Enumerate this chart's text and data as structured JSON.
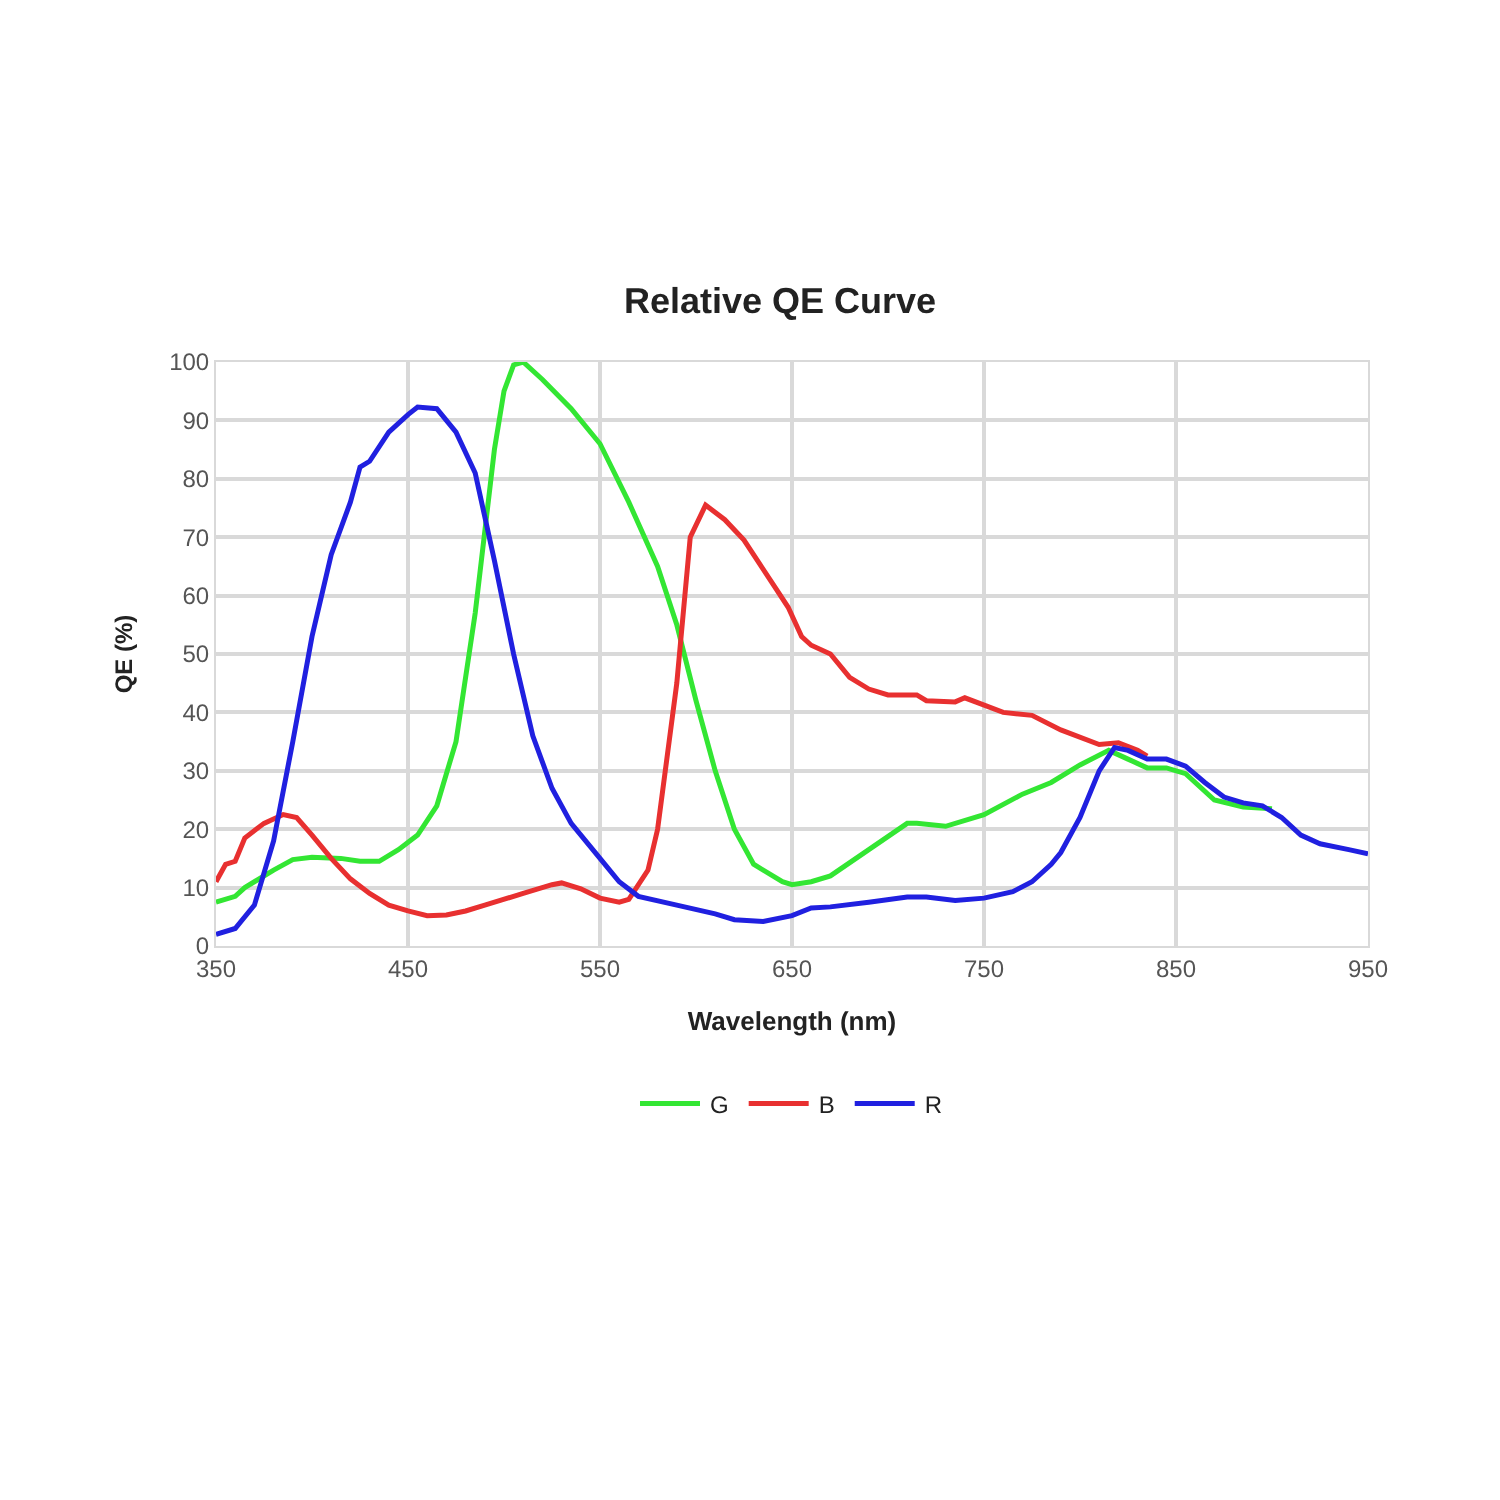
{
  "chart_data": {
    "type": "line",
    "title": "Relative QE Curve",
    "xlabel": "Wavelength (nm)",
    "ylabel": "QE (%)",
    "xlim": [
      350,
      950
    ],
    "xticks": [
      350,
      450,
      550,
      650,
      750,
      850,
      950
    ],
    "ylim": [
      0,
      100
    ],
    "yticks": [
      0,
      10,
      20,
      30,
      40,
      50,
      60,
      70,
      80,
      90,
      100
    ],
    "grid": true,
    "legend": "bottom",
    "marker": "none",
    "line_style": "solid",
    "series": [
      {
        "name": "G",
        "color": "#33e633",
        "x": [
          350,
          360,
          365,
          380,
          390,
          400,
          415,
          425,
          435,
          445,
          455,
          465,
          475,
          485,
          495,
          500,
          505,
          510,
          520,
          535,
          550,
          565,
          580,
          590,
          600,
          610,
          620,
          630,
          645,
          650,
          660,
          670,
          690,
          710,
          715,
          730,
          750,
          770,
          785,
          800,
          815,
          825,
          835,
          845,
          855,
          870,
          885,
          900
        ],
        "values": [
          7.5,
          8.5,
          10,
          13,
          14.8,
          15.2,
          15,
          14.5,
          14.5,
          16.5,
          19,
          24,
          35,
          57,
          85,
          95,
          99.5,
          100,
          97,
          92,
          86,
          76,
          65,
          55,
          42,
          30,
          20,
          14,
          11,
          10.5,
          11,
          12,
          16.5,
          21,
          21,
          20.5,
          22.5,
          26,
          28,
          31,
          33.5,
          32,
          30.5,
          30.5,
          29.5,
          25,
          23.8,
          23.5
        ]
      },
      {
        "name": "B",
        "color": "#e83030",
        "x": [
          350,
          355,
          360,
          365,
          375,
          385,
          392,
          400,
          410,
          420,
          430,
          440,
          450,
          460,
          470,
          480,
          490,
          510,
          525,
          530,
          540,
          550,
          560,
          565,
          575,
          580,
          590,
          597,
          605,
          615,
          625,
          640,
          648,
          655,
          660,
          670,
          680,
          690,
          700,
          715,
          720,
          735,
          740,
          760,
          775,
          790,
          810,
          820,
          830,
          835
        ],
        "values": [
          11,
          14,
          14.5,
          18.5,
          21,
          22.5,
          22,
          19,
          15,
          11.5,
          9,
          7,
          6,
          5.2,
          5.3,
          6,
          7,
          9,
          10.5,
          10.8,
          9.8,
          8.2,
          7.5,
          8,
          13,
          20,
          45,
          70,
          75.5,
          73,
          69.5,
          62,
          58,
          53,
          51.5,
          50,
          46,
          44,
          43,
          43,
          42,
          41.8,
          42.5,
          40,
          39.5,
          37,
          34.5,
          34.8,
          33.5,
          32.5
        ]
      },
      {
        "name": "R",
        "color": "#2020e0",
        "x": [
          350,
          360,
          370,
          380,
          390,
          400,
          410,
          420,
          425,
          430,
          440,
          450,
          455,
          465,
          475,
          485,
          495,
          505,
          515,
          525,
          535,
          550,
          560,
          570,
          590,
          610,
          620,
          635,
          650,
          660,
          670,
          690,
          710,
          720,
          735,
          750,
          765,
          775,
          785,
          790,
          800,
          810,
          818,
          825,
          835,
          845,
          855,
          865,
          875,
          885,
          895,
          905,
          915,
          925,
          940,
          950
        ],
        "values": [
          2,
          3,
          7,
          18,
          35,
          53,
          67,
          76,
          82,
          83,
          88,
          91,
          92.3,
          92,
          88,
          81,
          66,
          50,
          36,
          27,
          21,
          15,
          11,
          8.5,
          7,
          5.5,
          4.5,
          4.2,
          5.2,
          6.5,
          6.7,
          7.5,
          8.4,
          8.4,
          7.8,
          8.2,
          9.3,
          11,
          14,
          16,
          22,
          30,
          34,
          33.5,
          32,
          32,
          30.8,
          28,
          25.5,
          24.5,
          24,
          22,
          19,
          17.5,
          16.5,
          15.8
        ]
      }
    ]
  }
}
